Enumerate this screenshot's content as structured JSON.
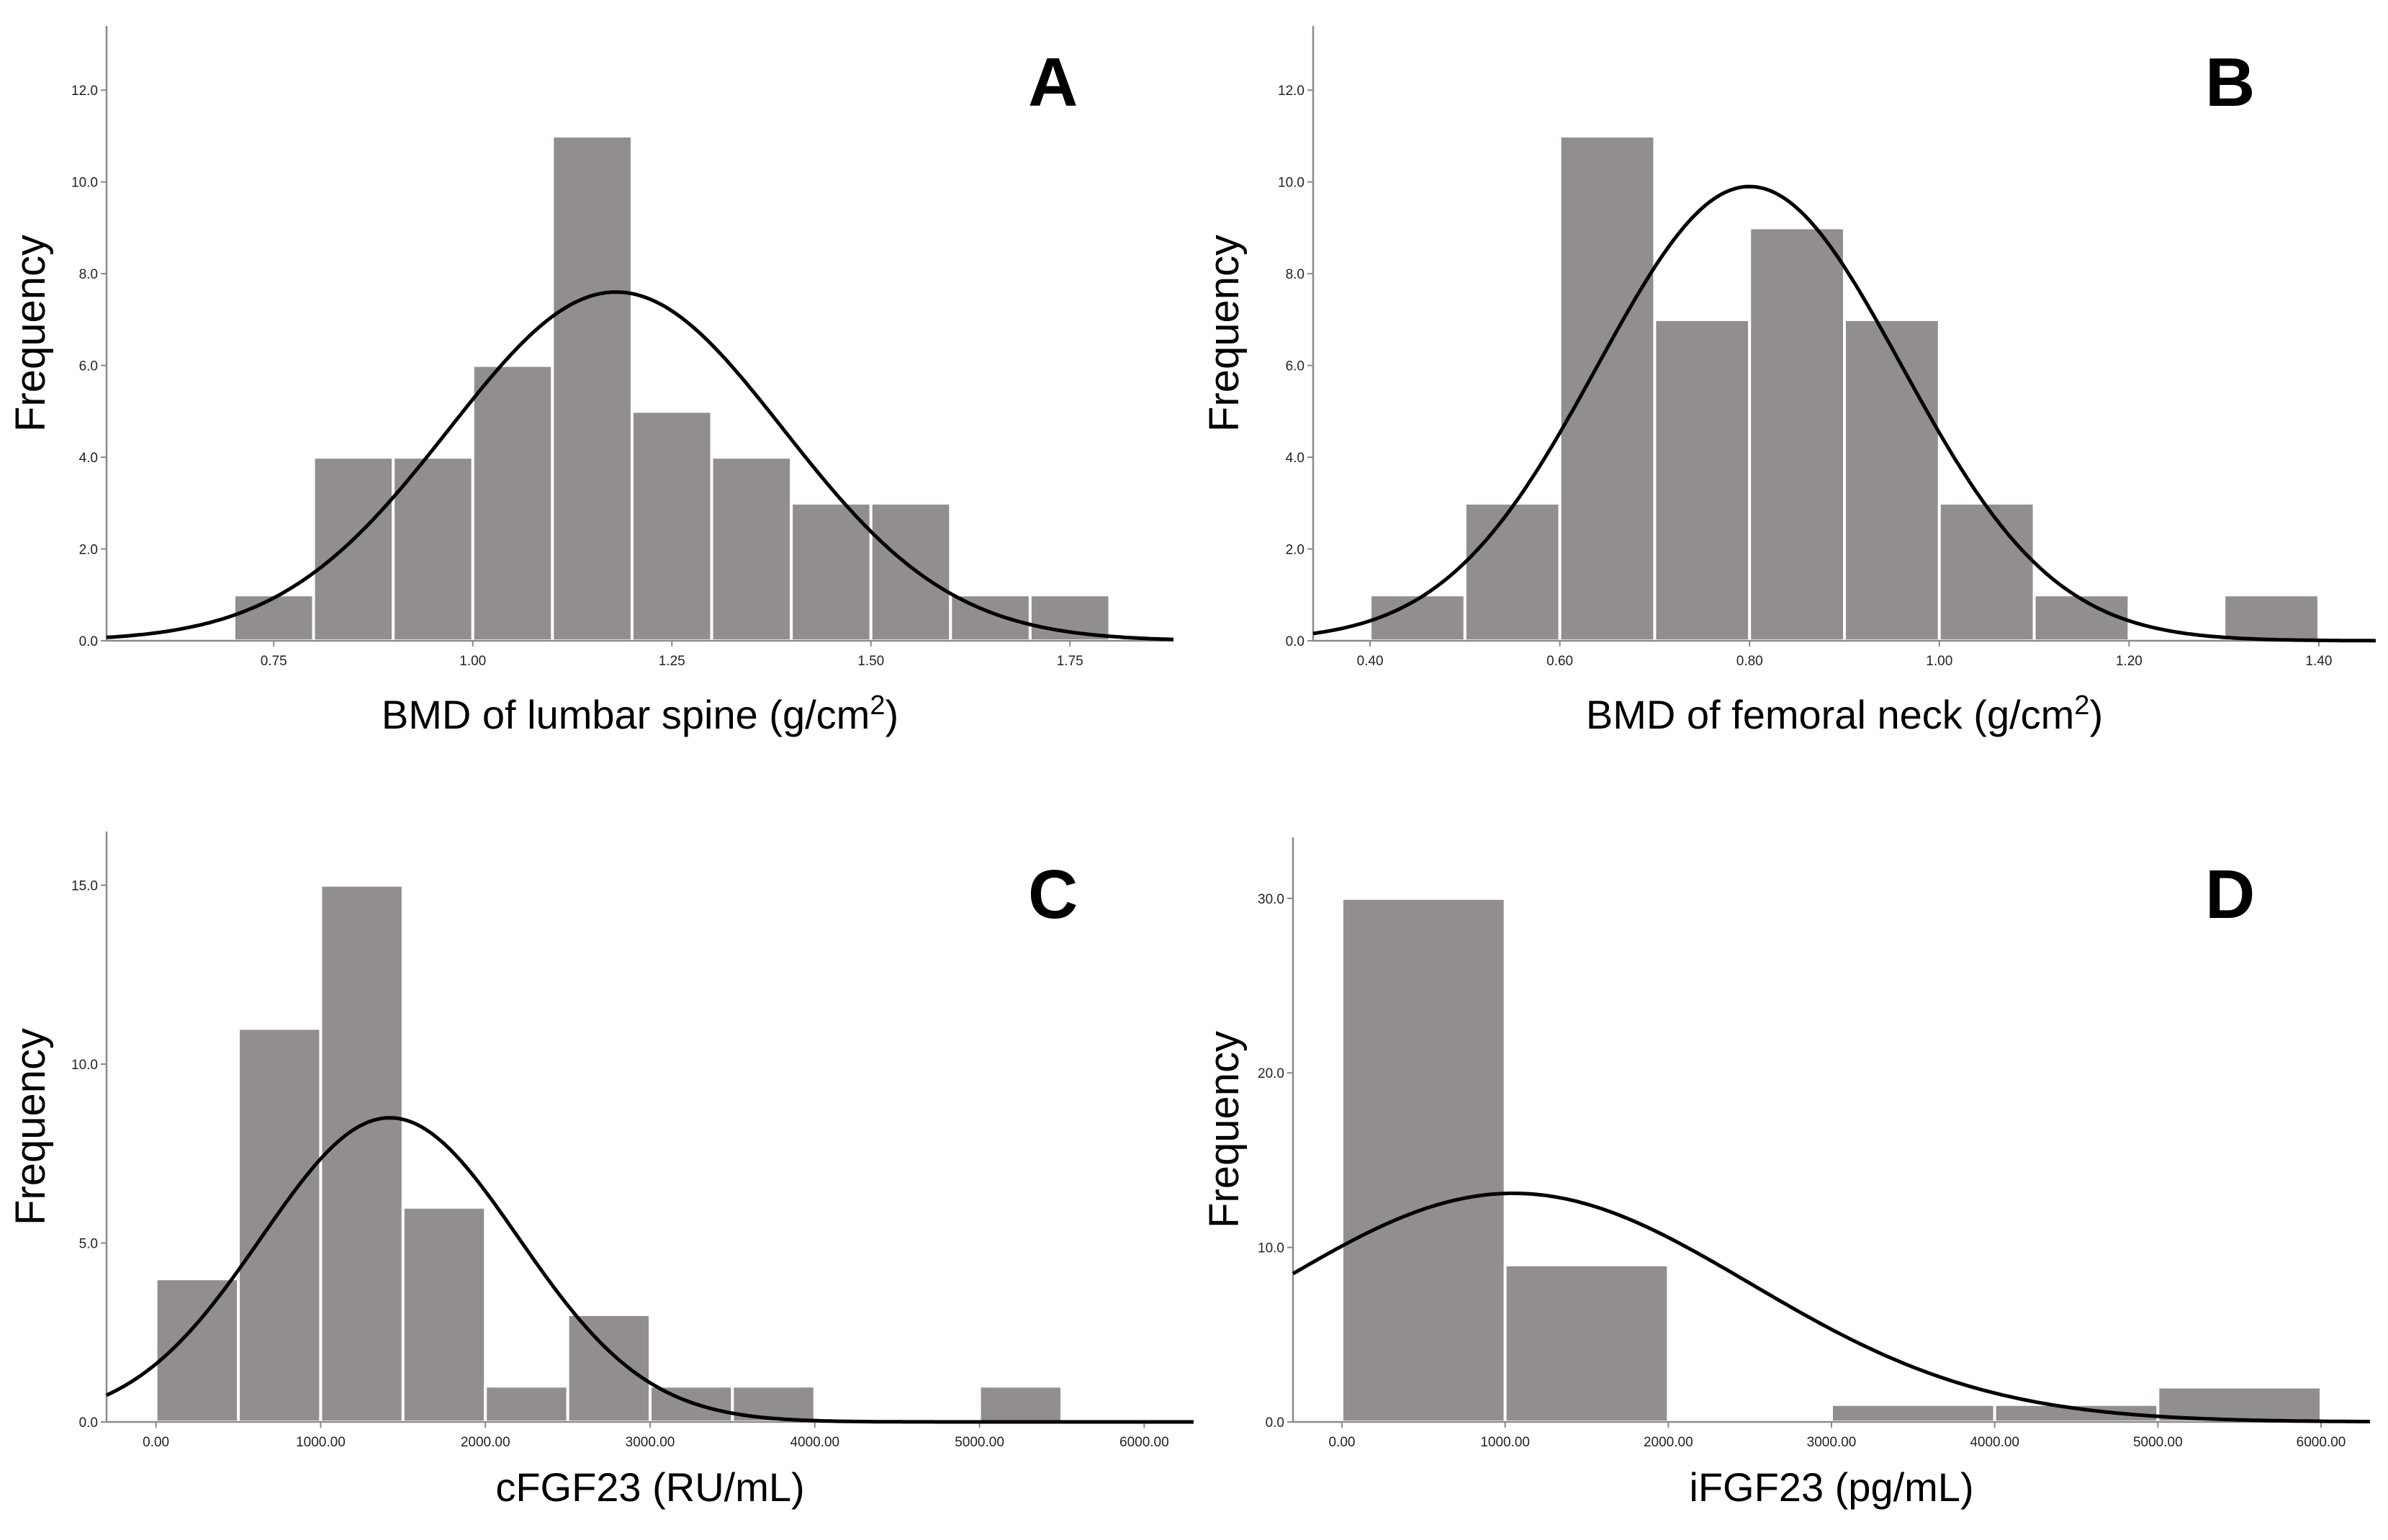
{
  "chart_data": [
    {
      "id": "A",
      "type": "bar",
      "panel_letter": "A",
      "xlabel": "BMD of lumbar spine (g/cm",
      "xlabel_sup": "2",
      "xlabel_end": ")",
      "ylabel": "Frequency",
      "xlim": [
        0.54,
        1.88
      ],
      "ylim": [
        0,
        13.4
      ],
      "xticks": [
        0.75,
        1.0,
        1.25,
        1.5,
        1.75
      ],
      "xtick_labels": [
        "0.75",
        "1.00",
        "1.25",
        "1.50",
        "1.75"
      ],
      "yticks": [
        0,
        2,
        4,
        6,
        8,
        10,
        12
      ],
      "ytick_labels": [
        "0.0",
        "2.0",
        "4.0",
        "6.0",
        "8.0",
        "10.0",
        "12.0"
      ],
      "bins": [
        {
          "x0": 0.7,
          "x1": 0.8,
          "count": 1
        },
        {
          "x0": 0.8,
          "x1": 0.9,
          "count": 4
        },
        {
          "x0": 0.9,
          "x1": 1.0,
          "count": 4
        },
        {
          "x0": 1.0,
          "x1": 1.1,
          "count": 6
        },
        {
          "x0": 1.1,
          "x1": 1.2,
          "count": 11
        },
        {
          "x0": 1.2,
          "x1": 1.3,
          "count": 5
        },
        {
          "x0": 1.3,
          "x1": 1.4,
          "count": 4
        },
        {
          "x0": 1.4,
          "x1": 1.5,
          "count": 3
        },
        {
          "x0": 1.5,
          "x1": 1.6,
          "count": 3
        },
        {
          "x0": 1.6,
          "x1": 1.7,
          "count": 1
        },
        {
          "x0": 1.7,
          "x1": 1.8,
          "count": 1
        }
      ],
      "normal_curve": {
        "mean": 1.18,
        "sd": 0.21,
        "peak": 7.6
      }
    },
    {
      "id": "B",
      "type": "bar",
      "panel_letter": "B",
      "xlabel": "BMD of femoral neck (g/cm",
      "xlabel_sup": "2",
      "xlabel_end": ")",
      "ylabel": "Frequency",
      "xlim": [
        0.34,
        1.46
      ],
      "ylim": [
        0,
        13.4
      ],
      "xticks": [
        0.4,
        0.6,
        0.8,
        1.0,
        1.2,
        1.4
      ],
      "xtick_labels": [
        "0.40",
        "0.60",
        "0.80",
        "1.00",
        "1.20",
        "1.40"
      ],
      "yticks": [
        0,
        2,
        4,
        6,
        8,
        10,
        12
      ],
      "ytick_labels": [
        "0.0",
        "2.0",
        "4.0",
        "6.0",
        "8.0",
        "10.0",
        "12.0"
      ],
      "bins": [
        {
          "x0": 0.4,
          "x1": 0.5,
          "count": 1
        },
        {
          "x0": 0.5,
          "x1": 0.6,
          "count": 3
        },
        {
          "x0": 0.6,
          "x1": 0.7,
          "count": 11
        },
        {
          "x0": 0.7,
          "x1": 0.8,
          "count": 7
        },
        {
          "x0": 0.8,
          "x1": 0.9,
          "count": 9
        },
        {
          "x0": 0.9,
          "x1": 1.0,
          "count": 7
        },
        {
          "x0": 1.0,
          "x1": 1.1,
          "count": 3
        },
        {
          "x0": 1.1,
          "x1": 1.2,
          "count": 1
        },
        {
          "x0": 1.3,
          "x1": 1.4,
          "count": 1
        }
      ],
      "normal_curve": {
        "mean": 0.8,
        "sd": 0.16,
        "peak": 9.9
      }
    },
    {
      "id": "C",
      "type": "bar",
      "panel_letter": "C",
      "xlabel": "cFGF23 (RU/mL)",
      "xlabel_sup": "",
      "xlabel_end": "",
      "ylabel": "Frequency",
      "xlim": [
        -300,
        6300
      ],
      "ylim": [
        0,
        16.5
      ],
      "xticks": [
        0,
        1000,
        2000,
        3000,
        4000,
        5000,
        6000
      ],
      "xtick_labels": [
        "0.00",
        "1000.00",
        "2000.00",
        "3000.00",
        "4000.00",
        "5000.00",
        "6000.00"
      ],
      "yticks": [
        0,
        5,
        10,
        15
      ],
      "ytick_labels": [
        "0.0",
        "5.0",
        "10.0",
        "15.0"
      ],
      "bins": [
        {
          "x0": 0,
          "x1": 500,
          "count": 4
        },
        {
          "x0": 500,
          "x1": 1000,
          "count": 11
        },
        {
          "x0": 1000,
          "x1": 1500,
          "count": 15
        },
        {
          "x0": 1500,
          "x1": 2000,
          "count": 6
        },
        {
          "x0": 2000,
          "x1": 2500,
          "count": 1
        },
        {
          "x0": 2500,
          "x1": 3000,
          "count": 3
        },
        {
          "x0": 3000,
          "x1": 3500,
          "count": 1
        },
        {
          "x0": 3500,
          "x1": 4000,
          "count": 1
        },
        {
          "x0": 5000,
          "x1": 5500,
          "count": 1
        }
      ],
      "normal_curve": {
        "mean": 1420,
        "sd": 780,
        "peak": 8.5
      }
    },
    {
      "id": "D",
      "type": "bar",
      "panel_letter": "D",
      "xlabel": "iFGF23 (pg/mL)",
      "xlabel_sup": "",
      "xlabel_end": "",
      "ylabel": "Frequency",
      "xlim": [
        -300,
        6300
      ],
      "ylim": [
        0,
        33.5
      ],
      "xticks": [
        0,
        1000,
        2000,
        3000,
        4000,
        5000,
        6000
      ],
      "xtick_labels": [
        "0.00",
        "1000.00",
        "2000.00",
        "3000.00",
        "4000.00",
        "5000.00",
        "6000.00"
      ],
      "yticks": [
        0,
        10,
        20,
        30
      ],
      "ytick_labels": [
        "0.0",
        "10.0",
        "20.0",
        "30.0"
      ],
      "bins": [
        {
          "x0": 0,
          "x1": 1000,
          "count": 30
        },
        {
          "x0": 1000,
          "x1": 2000,
          "count": 9
        },
        {
          "x0": 3000,
          "x1": 4000,
          "count": 1
        },
        {
          "x0": 4000,
          "x1": 5000,
          "count": 1
        },
        {
          "x0": 5000,
          "x1": 6000,
          "count": 2
        }
      ],
      "normal_curve": {
        "mean": 1050,
        "sd": 1450,
        "peak": 13.1
      }
    }
  ]
}
